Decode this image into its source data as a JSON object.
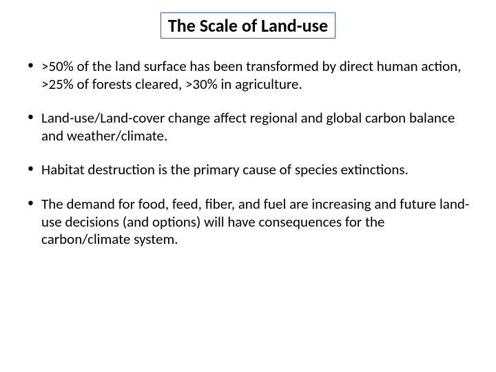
{
  "slide": {
    "title": "The Scale of Land-use",
    "title_border_color": "#3a5fa0",
    "background_color": "#ffffff",
    "text_color": "#000000",
    "title_fontsize": 26,
    "bullet_fontsize": 21,
    "bullets": [
      ">50% of the land surface has been transformed by direct human action, >25% of forests cleared, >30% in agriculture.",
      "Land-use/Land-cover change affect regional and global carbon balance and weather/climate.",
      "Habitat destruction is the primary cause of species extinctions.",
      "The demand for food, feed, fiber, and fuel are increasing and future land-use decisions (and options) will have consequences for the carbon/climate system."
    ]
  }
}
